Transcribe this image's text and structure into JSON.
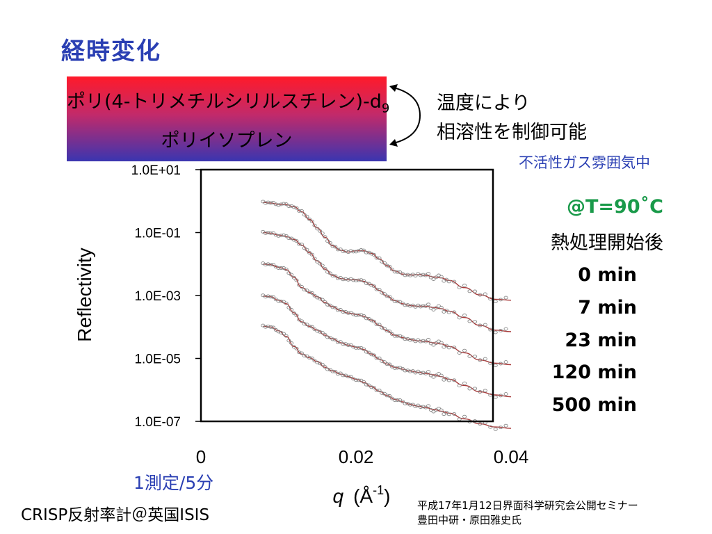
{
  "title": "経時変化",
  "polymer_box": {
    "line1": "ポリ(4-トリメチルシリルスチレン)-d",
    "line1_sub": "9",
    "line2": "ポリイソプレン"
  },
  "temperature_note": [
    "温度により",
    "相溶性を制御可能"
  ],
  "atmosphere_note": "不活性ガス雰囲気中",
  "temperature_label": "@T=90˚C",
  "anneal_label": "熱処理開始後",
  "time_labels": [
    "0 min",
    "7 min",
    "23 min",
    "120 min",
    "500 min"
  ],
  "measurement_note": "1測定/5分",
  "instrument_note": "CRISP反射率計＠英国ISIS",
  "credit": [
    "平成17年1月12日界面科学研究会公開セミナー",
    "豊田中研・原田雅史氏"
  ],
  "colors": {
    "title": "#2a3fb3",
    "temperature": "#1a9a4a",
    "fit_line": "#a83a3a",
    "data_marker": "#888888",
    "gradient_top": "#ff1a2a",
    "gradient_bottom": "#3a35b0"
  },
  "chart_data": {
    "type": "scatter",
    "xlabel_symbol": "q",
    "xlabel_unit": "(Å",
    "xlabel_unit_sup": "-1",
    "xlabel_unit_close": ")",
    "ylabel": "Reflectivity",
    "xlim": [
      0,
      0.04
    ],
    "ylim_log10": [
      -7,
      1
    ],
    "y_scale": "log",
    "x_tick_labels": [
      "0",
      "0.02",
      "0.04"
    ],
    "x_tick_values": [
      0,
      0.02,
      0.04
    ],
    "y_tick_labels": [
      "1.0E+01",
      "1.0E-01",
      "1.0E-03",
      "1.0E-05",
      "1.0E-07"
    ],
    "y_tick_values_log10": [
      1,
      -1,
      -3,
      -5,
      -7
    ],
    "series": [
      {
        "name": "0 min",
        "x": [
          0.008,
          0.009,
          0.01,
          0.011,
          0.012,
          0.013,
          0.014,
          0.015,
          0.016,
          0.017,
          0.018,
          0.019,
          0.02,
          0.021,
          0.022,
          0.023,
          0.024,
          0.025,
          0.026,
          0.027,
          0.028,
          0.029,
          0.03,
          0.031,
          0.032,
          0.034,
          0.036,
          0.038,
          0.04
        ],
        "log10_y": [
          -0.04,
          -0.06,
          -0.1,
          -0.11,
          -0.18,
          -0.34,
          -0.58,
          -0.85,
          -1.15,
          -1.42,
          -1.56,
          -1.62,
          -1.58,
          -1.58,
          -1.66,
          -1.84,
          -2.05,
          -2.22,
          -2.32,
          -2.35,
          -2.34,
          -2.36,
          -2.41,
          -2.44,
          -2.52,
          -2.75,
          -2.98,
          -3.12,
          -3.15
        ]
      },
      {
        "name": "7 min",
        "x": [
          0.008,
          0.009,
          0.01,
          0.011,
          0.012,
          0.013,
          0.014,
          0.015,
          0.016,
          0.017,
          0.018,
          0.019,
          0.02,
          0.021,
          0.022,
          0.023,
          0.024,
          0.025,
          0.026,
          0.027,
          0.028,
          0.029,
          0.03,
          0.031,
          0.032,
          0.034,
          0.036,
          0.038,
          0.04
        ],
        "log10_y": [
          -1.0,
          -1.02,
          -1.08,
          -1.12,
          -1.22,
          -1.4,
          -1.64,
          -1.9,
          -2.16,
          -2.36,
          -2.46,
          -2.5,
          -2.5,
          -2.55,
          -2.66,
          -2.84,
          -3.02,
          -3.16,
          -3.26,
          -3.32,
          -3.34,
          -3.34,
          -3.38,
          -3.42,
          -3.5,
          -3.7,
          -3.95,
          -4.1,
          -4.15
        ]
      },
      {
        "name": "23 min",
        "x": [
          0.008,
          0.009,
          0.01,
          0.011,
          0.012,
          0.013,
          0.014,
          0.015,
          0.016,
          0.017,
          0.018,
          0.019,
          0.02,
          0.021,
          0.022,
          0.023,
          0.024,
          0.025,
          0.026,
          0.027,
          0.028,
          0.029,
          0.03,
          0.031,
          0.032,
          0.034,
          0.036,
          0.038,
          0.04
        ],
        "log10_y": [
          -2.0,
          -2.02,
          -2.1,
          -2.18,
          -2.42,
          -2.75,
          -2.9,
          -3.04,
          -3.22,
          -3.36,
          -3.48,
          -3.56,
          -3.6,
          -3.66,
          -3.78,
          -3.95,
          -4.12,
          -4.26,
          -4.34,
          -4.4,
          -4.44,
          -4.46,
          -4.5,
          -4.54,
          -4.62,
          -4.82,
          -5.05,
          -5.15,
          -5.2
        ]
      },
      {
        "name": "120 min",
        "x": [
          0.008,
          0.009,
          0.01,
          0.011,
          0.012,
          0.013,
          0.014,
          0.015,
          0.016,
          0.017,
          0.018,
          0.019,
          0.02,
          0.021,
          0.022,
          0.023,
          0.024,
          0.025,
          0.026,
          0.027,
          0.028,
          0.029,
          0.03,
          0.031,
          0.032,
          0.034,
          0.036,
          0.038,
          0.04
        ],
        "log10_y": [
          -3.02,
          -3.04,
          -3.15,
          -3.26,
          -3.55,
          -3.84,
          -3.98,
          -4.1,
          -4.26,
          -4.38,
          -4.5,
          -4.58,
          -4.64,
          -4.72,
          -4.86,
          -5.02,
          -5.18,
          -5.28,
          -5.34,
          -5.4,
          -5.44,
          -5.48,
          -5.52,
          -5.58,
          -5.66,
          -5.86,
          -6.06,
          -6.16,
          -6.22
        ]
      },
      {
        "name": "500 min",
        "x": [
          0.008,
          0.009,
          0.01,
          0.011,
          0.012,
          0.013,
          0.014,
          0.015,
          0.016,
          0.017,
          0.018,
          0.019,
          0.02,
          0.021,
          0.022,
          0.023,
          0.024,
          0.025,
          0.026,
          0.027,
          0.028,
          0.029,
          0.03,
          0.031,
          0.032,
          0.034,
          0.036,
          0.038,
          0.04
        ],
        "log10_y": [
          -3.98,
          -4.0,
          -4.12,
          -4.3,
          -4.62,
          -4.86,
          -4.98,
          -5.1,
          -5.28,
          -5.4,
          -5.5,
          -5.58,
          -5.66,
          -5.76,
          -5.9,
          -6.04,
          -6.18,
          -6.3,
          -6.38,
          -6.46,
          -6.52,
          -6.56,
          -6.62,
          -6.68,
          -6.74,
          -6.92,
          -7.08,
          -7.18,
          -7.22
        ]
      }
    ],
    "fit_lines": true,
    "grid": false
  }
}
